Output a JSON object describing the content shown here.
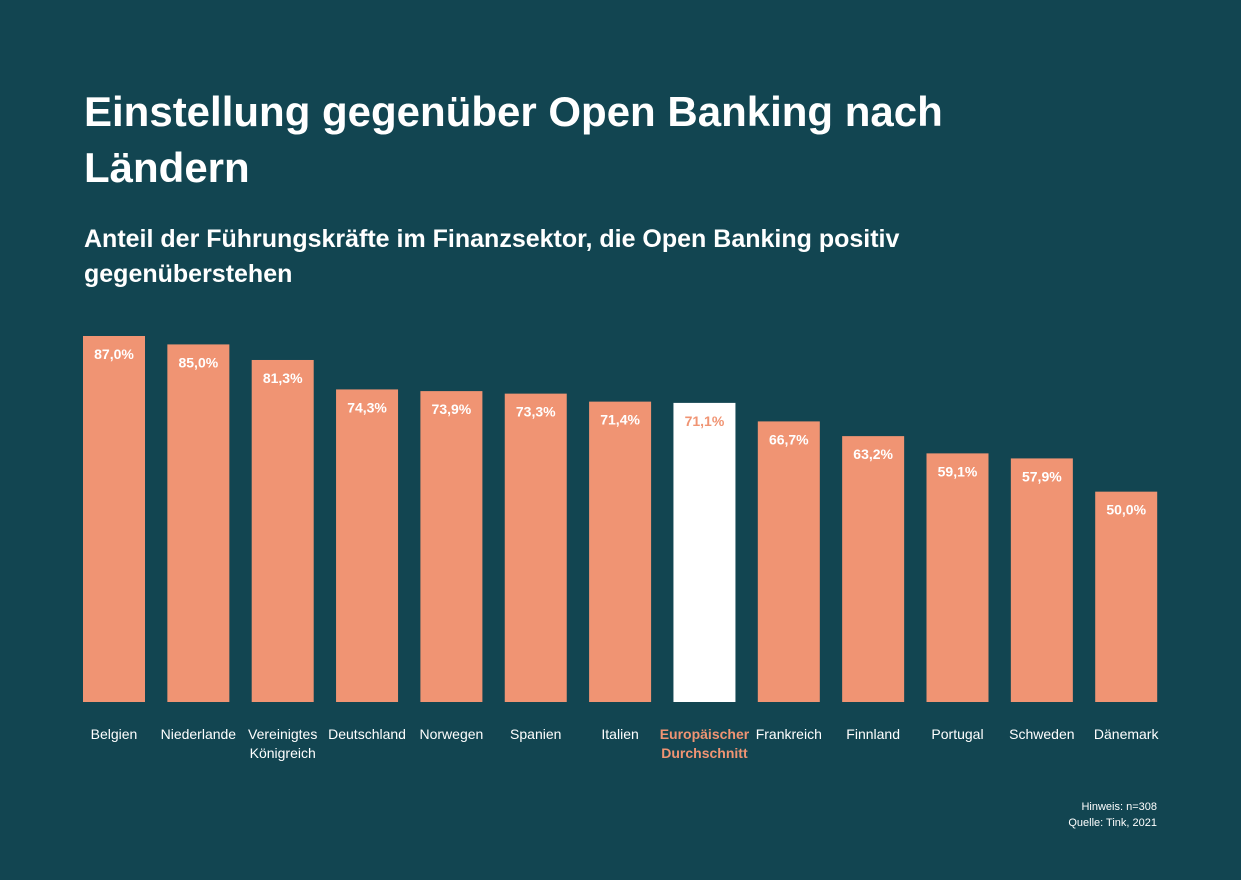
{
  "chart_data": {
    "type": "bar",
    "title": "Einstellung gegenüber Open Banking nach Ländern",
    "subtitle": "Anteil der Führungskräfte im Finanzsektor, die Open Banking positiv gegenüberstehen",
    "categories": [
      [
        "Belgien"
      ],
      [
        "Niederlande"
      ],
      [
        "Vereinigtes",
        "Königreich"
      ],
      [
        "Deutschland"
      ],
      [
        "Norwegen"
      ],
      [
        "Spanien"
      ],
      [
        "Italien"
      ],
      [
        "Europäischer",
        "Durchschnitt"
      ],
      [
        "Frankreich"
      ],
      [
        "Finnland"
      ],
      [
        "Portugal"
      ],
      [
        "Schweden"
      ],
      [
        "Dänemark"
      ]
    ],
    "values": [
      87.0,
      85.0,
      81.3,
      74.3,
      73.9,
      73.3,
      71.4,
      71.1,
      66.7,
      63.2,
      59.1,
      57.9,
      50.0
    ],
    "data_labels": [
      "87,0%",
      "85,0%",
      "81,3%",
      "74,3%",
      "73,9%",
      "73,3%",
      "71,4%",
      "71,1%",
      "66,7%",
      "63,2%",
      "59,1%",
      "57,9%",
      "50,0%"
    ],
    "highlight_index": 7,
    "ylim": [
      0,
      87
    ],
    "grid": false,
    "xlabel": "",
    "ylabel": ""
  },
  "notes": {
    "hint": "Hinweis: n=308",
    "source": "Quelle: Tink, 2021"
  },
  "colors": {
    "background": "#124551",
    "bar": "#f09473",
    "highlight_bar": "#ffffff",
    "highlight_text": "#f09473",
    "text": "#ffffff"
  }
}
